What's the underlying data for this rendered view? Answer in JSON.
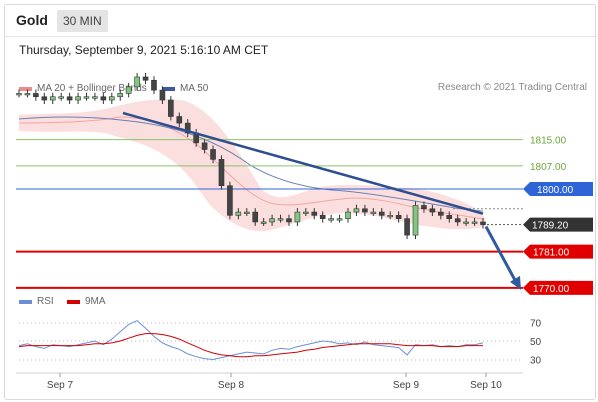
{
  "header": {
    "asset": "Gold",
    "timeframe": "30 MIN"
  },
  "date_line": "Thursday, September 9, 2021 5:16:10 AM CET",
  "legend": {
    "ma_bb": {
      "label": "MA 20 + Bollinger Bands",
      "color": "#f08a8a"
    },
    "ma50": {
      "label": "MA 50",
      "color": "#3a5a9a"
    }
  },
  "credit": "Research © 2021 Trading Central",
  "rsi_legend": {
    "rsi": {
      "label": "RSI",
      "color": "#6a8fd8"
    },
    "ma9": {
      "label": "9MA",
      "color": "#d40000"
    }
  },
  "chart_data": {
    "type": "candlestick",
    "instrument": "Gold",
    "interval": "30 MIN",
    "x_ticks": [
      "Sep 7",
      "Sep 8",
      "Sep 9",
      "Sep 10"
    ],
    "current_price": "1789.20",
    "resistance_levels": [
      "1815.00",
      "1807.00",
      "1800.00"
    ],
    "support_levels": [
      "1781.00",
      "1770.00"
    ],
    "price_path": [
      1829,
      1829,
      1828,
      1827,
      1828,
      1828,
      1827,
      1828,
      1828,
      1828,
      1827,
      1828,
      1829,
      1831,
      1834,
      1833,
      1830,
      1827,
      1822,
      1820,
      1817,
      1814,
      1812,
      1809,
      1801,
      1792,
      1793,
      1793,
      1790,
      1790,
      1791,
      1791,
      1790,
      1793,
      1793,
      1792,
      1791,
      1791,
      1791,
      1793,
      1794,
      1793,
      1793,
      1792,
      1792,
      1791,
      1786,
      1795,
      1794,
      1793,
      1792,
      1791,
      1790,
      1790,
      1790,
      1789.2
    ],
    "rsi_axis_ticks": [
      "70",
      "50",
      "30"
    ],
    "rsi": [
      45,
      47,
      44,
      42,
      46,
      45,
      44,
      46,
      48,
      50,
      46,
      52,
      60,
      68,
      72,
      64,
      55,
      48,
      44,
      41,
      36,
      33,
      31,
      30,
      32,
      34,
      36,
      38,
      37,
      36,
      40,
      42,
      41,
      44,
      46,
      48,
      50,
      49,
      47,
      48,
      46,
      49,
      46,
      45,
      44,
      43,
      35,
      46,
      45,
      46,
      44,
      45,
      44,
      46,
      46,
      48
    ],
    "rsi_ma9": [
      44,
      45,
      45,
      45,
      45,
      45,
      45,
      45,
      46,
      47,
      47,
      48,
      50,
      53,
      56,
      58,
      58,
      57,
      55,
      52,
      48,
      44,
      40,
      37,
      35,
      34,
      33,
      33,
      34,
      34,
      35,
      36,
      37,
      38,
      40,
      41,
      43,
      44,
      45,
      46,
      47,
      47,
      47,
      47,
      47,
      46,
      45,
      45,
      45,
      45,
      44,
      44,
      44,
      45,
      45,
      45
    ],
    "projection": {
      "from": "1789.20",
      "to": "1770.00"
    }
  }
}
